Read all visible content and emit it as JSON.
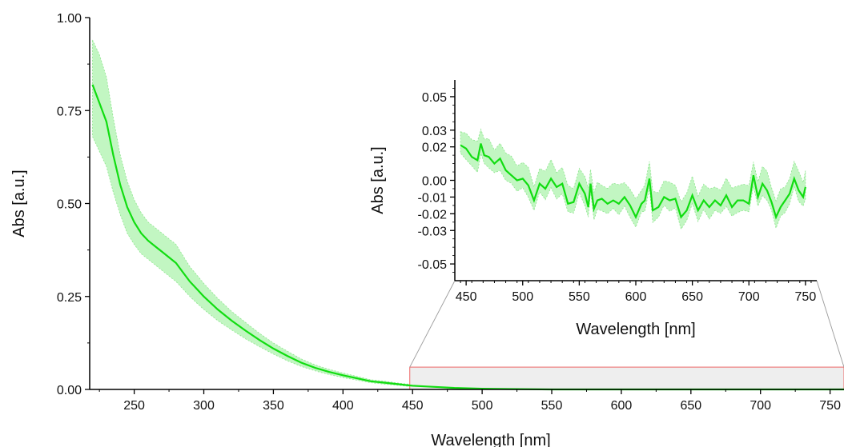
{
  "colors": {
    "line": "#11dd11",
    "band": "#b8f5b8",
    "band_edge": "#7be07b",
    "zoom_box_fill": "#eeeeee",
    "zoom_box_stroke": "#ee6666",
    "axis": "#000000"
  },
  "chart_data": [
    {
      "type": "area",
      "xlabel": "Wavelength [nm]",
      "ylabel": "Abs [a.u.]",
      "xlim": [
        218,
        760
      ],
      "ylim": [
        0,
        1
      ],
      "xticks": [
        250,
        300,
        350,
        400,
        450,
        500,
        550,
        600,
        650,
        700,
        750
      ],
      "xtick_labels": [
        "250",
        "300",
        "350",
        "400",
        "450",
        "500",
        "550",
        "600",
        "650",
        "700",
        "750"
      ],
      "yticks": [
        0,
        0.25,
        0.5,
        0.75,
        1.0
      ],
      "ytick_labels": [
        "0.00",
        "0.25",
        "0.50",
        "0.75",
        "1.00"
      ],
      "grid": false,
      "series": [
        {
          "x": [
            220,
            225,
            230,
            235,
            240,
            245,
            250,
            255,
            260,
            265,
            270,
            275,
            280,
            285,
            290,
            295,
            300,
            310,
            320,
            330,
            340,
            350,
            360,
            370,
            380,
            390,
            400,
            410,
            420,
            430,
            440,
            450,
            460,
            470,
            480,
            490,
            500,
            520,
            550,
            600,
            650,
            700,
            750,
            760
          ],
          "y": [
            0.82,
            0.77,
            0.72,
            0.63,
            0.55,
            0.49,
            0.45,
            0.42,
            0.4,
            0.385,
            0.37,
            0.355,
            0.34,
            0.315,
            0.29,
            0.27,
            0.25,
            0.215,
            0.185,
            0.158,
            0.133,
            0.11,
            0.09,
            0.072,
            0.058,
            0.047,
            0.038,
            0.03,
            0.022,
            0.018,
            0.014,
            0.01,
            0.008,
            0.006,
            0.004,
            0.003,
            0.002,
            0.001,
            0.0,
            0.0,
            0.0,
            0.0,
            0.0,
            0.0
          ],
          "y_lower": [
            0.68,
            0.64,
            0.6,
            0.53,
            0.47,
            0.42,
            0.39,
            0.365,
            0.35,
            0.335,
            0.32,
            0.305,
            0.29,
            0.27,
            0.25,
            0.232,
            0.215,
            0.185,
            0.16,
            0.136,
            0.115,
            0.095,
            0.077,
            0.062,
            0.05,
            0.04,
            0.032,
            0.025,
            0.018,
            0.014,
            0.011,
            0.007,
            0.005,
            0.003,
            0.002,
            0.001,
            0.0,
            0.0,
            0.0,
            0.0,
            0.0,
            0.0,
            0.0,
            0.0
          ],
          "y_upper": [
            0.94,
            0.9,
            0.84,
            0.73,
            0.63,
            0.56,
            0.51,
            0.475,
            0.45,
            0.435,
            0.42,
            0.405,
            0.39,
            0.36,
            0.33,
            0.308,
            0.285,
            0.245,
            0.21,
            0.18,
            0.151,
            0.125,
            0.103,
            0.082,
            0.066,
            0.054,
            0.044,
            0.035,
            0.026,
            0.022,
            0.017,
            0.013,
            0.011,
            0.009,
            0.006,
            0.005,
            0.004,
            0.003,
            0.002,
            0.002,
            0.002,
            0.002,
            0.002,
            0.002
          ]
        }
      ],
      "zoom_region": {
        "x": [
          448,
          760
        ],
        "y": [
          0,
          0.06
        ]
      }
    },
    {
      "type": "area",
      "xlabel": "Wavelength [nm]",
      "ylabel": "Abs [a.u.]",
      "xlim": [
        440,
        760
      ],
      "ylim": [
        -0.06,
        0.06
      ],
      "xticks": [
        450,
        500,
        550,
        600,
        650,
        700,
        750
      ],
      "xtick_labels": [
        "450",
        "500",
        "550",
        "600",
        "650",
        "700",
        "750"
      ],
      "yticks": [
        -0.05,
        -0.03,
        -0.02,
        -0.01,
        0.0,
        0.02,
        0.03,
        0.05
      ],
      "ytick_labels": [
        "-0.05",
        "-0.03",
        "-0.02",
        "-0.01",
        "0.00",
        "0.02",
        "0.03",
        "0.05"
      ],
      "grid": false,
      "series": [
        {
          "x": [
            445,
            450,
            455,
            460,
            463,
            466,
            470,
            475,
            480,
            485,
            490,
            495,
            500,
            505,
            510,
            515,
            520,
            525,
            530,
            535,
            540,
            545,
            550,
            555,
            558,
            560,
            563,
            566,
            570,
            575,
            580,
            585,
            590,
            595,
            600,
            605,
            608,
            612,
            615,
            620,
            625,
            630,
            635,
            640,
            645,
            650,
            655,
            660,
            665,
            670,
            675,
            680,
            685,
            690,
            695,
            700,
            704,
            708,
            712,
            716,
            720,
            724,
            728,
            732,
            736,
            740,
            744,
            748,
            750
          ],
          "y": [
            0.021,
            0.019,
            0.014,
            0.012,
            0.022,
            0.015,
            0.014,
            0.01,
            0.013,
            0.006,
            0.003,
            0.0,
            0.001,
            -0.003,
            -0.012,
            -0.002,
            -0.005,
            0.001,
            -0.004,
            -0.002,
            -0.014,
            -0.013,
            -0.002,
            -0.008,
            -0.016,
            -0.002,
            -0.017,
            -0.012,
            -0.011,
            -0.014,
            -0.012,
            -0.014,
            -0.01,
            -0.015,
            -0.022,
            -0.014,
            -0.012,
            0.001,
            -0.018,
            -0.016,
            -0.01,
            -0.012,
            -0.011,
            -0.022,
            -0.018,
            -0.009,
            -0.018,
            -0.012,
            -0.016,
            -0.012,
            -0.015,
            -0.009,
            -0.016,
            -0.012,
            -0.012,
            -0.014,
            0.003,
            -0.01,
            -0.002,
            -0.006,
            -0.013,
            -0.022,
            -0.016,
            -0.012,
            -0.008,
            0.001,
            -0.006,
            -0.01,
            -0.004
          ]
        }
      ],
      "band_width": 0.008
    }
  ]
}
